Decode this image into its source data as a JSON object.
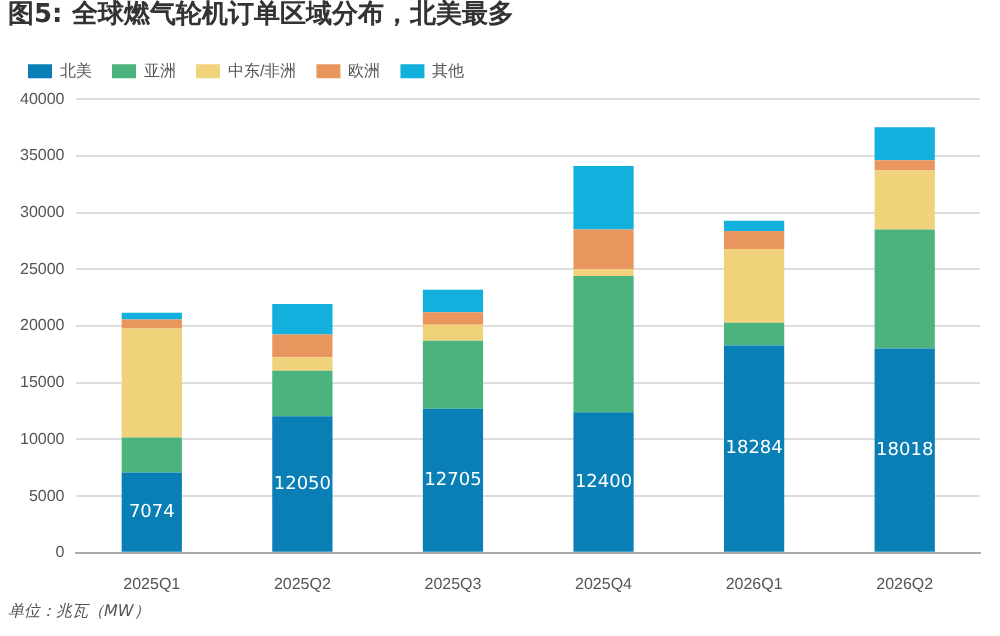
{
  "chart_data": {
    "type": "bar",
    "title": "图5: 全球燃气轮机订单区域分布，北美最多",
    "categories": [
      "2025Q1",
      "2025Q2",
      "2025Q3",
      "2025Q4",
      "2026Q1",
      "2026Q2"
    ],
    "stacked": true,
    "series": [
      {
        "name": "北美",
        "color": "#0a7fb5",
        "values": [
          7074,
          12050,
          12705,
          12400,
          18284,
          18018
        ],
        "value_labels": [
          "7074",
          "12050",
          "12705",
          "12400",
          "18284",
          "18018"
        ]
      },
      {
        "name": "亚洲",
        "color": "#4db37e",
        "values": [
          3100,
          4000,
          6000,
          12000,
          2000,
          10500
        ]
      },
      {
        "name": "中东/非洲",
        "color": "#f0d27a",
        "values": [
          9600,
          1200,
          1400,
          600,
          6500,
          5200
        ]
      },
      {
        "name": "欧洲",
        "color": "#e9965e",
        "values": [
          800,
          2000,
          1100,
          3500,
          1600,
          900
        ]
      },
      {
        "name": "其他",
        "color": "#12b0dc",
        "values": [
          600,
          2700,
          2000,
          5600,
          900,
          2900
        ]
      }
    ],
    "ylim": [
      0,
      40000
    ],
    "yticks": [
      0,
      5000,
      10000,
      15000,
      20000,
      25000,
      30000,
      35000,
      40000
    ],
    "grid": "y",
    "legend": "top left",
    "annotations": [
      "单位：兆瓦（MW）"
    ]
  }
}
